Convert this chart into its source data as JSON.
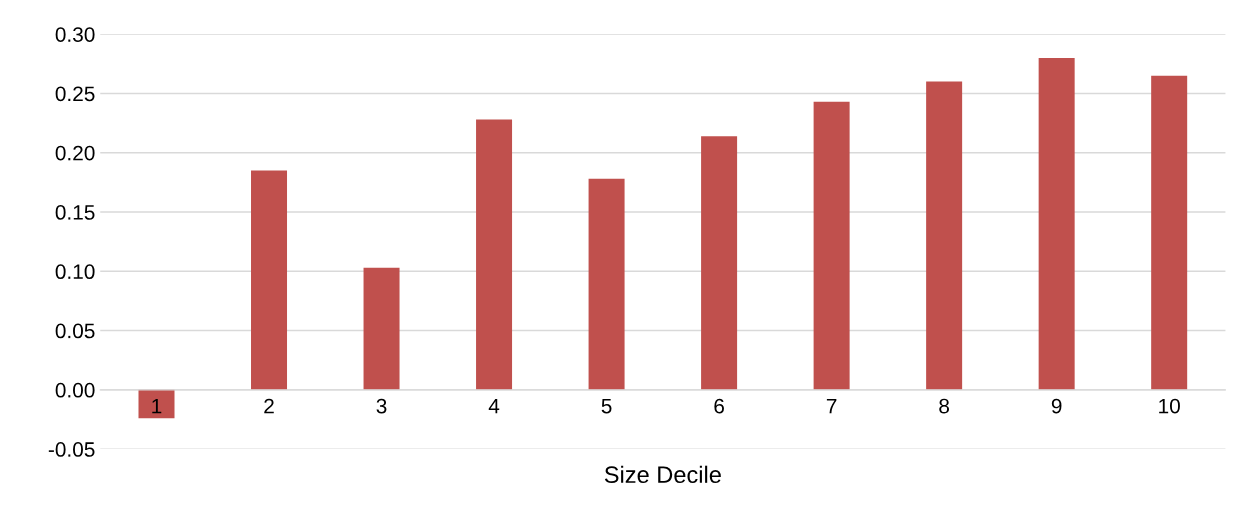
{
  "chart_data": {
    "type": "bar",
    "xlabel": "Size Decile",
    "categories": [
      "1",
      "2",
      "3",
      "4",
      "5",
      "6",
      "7",
      "8",
      "9",
      "10"
    ],
    "values": [
      -0.024,
      0.185,
      0.103,
      0.228,
      0.178,
      0.214,
      0.243,
      0.26,
      0.28,
      0.265
    ],
    "color": "#c0504d",
    "ylim": [
      -0.05,
      0.3
    ],
    "yticks": [
      {
        "value": -0.05,
        "label": "-0.05"
      },
      {
        "value": 0,
        "label": "0.00"
      },
      {
        "value": 0.05,
        "label": "0.05"
      },
      {
        "value": 0.1,
        "label": "0.10"
      },
      {
        "value": 0.15,
        "label": "0.15"
      },
      {
        "value": 0.2,
        "label": "0.20"
      },
      {
        "value": 0.25,
        "label": "0.25"
      },
      {
        "value": 0.3,
        "label": "0.30"
      }
    ],
    "grid": "y"
  }
}
